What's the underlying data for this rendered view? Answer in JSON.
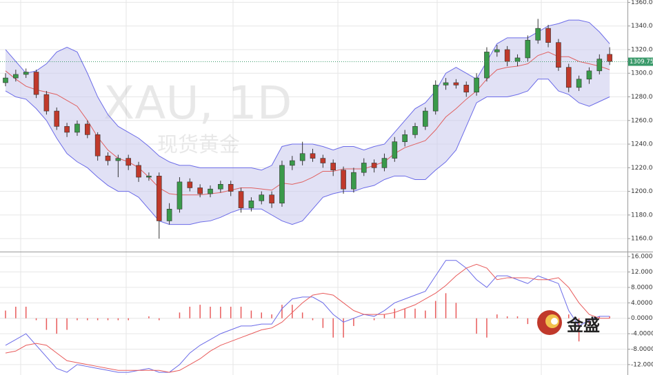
{
  "chart_data": [
    {
      "type": "candlestick",
      "watermark": [
        "XAU, 1D",
        "现货黄金"
      ],
      "open": [
        1292,
        1296,
        1299,
        1301,
        1282,
        1268,
        1255,
        1250,
        1257,
        1248,
        1230,
        1226,
        1228,
        1222,
        1212,
        1213,
        1175,
        1185,
        1208,
        1203,
        1198,
        1202,
        1206,
        1200,
        1186,
        1192,
        1197,
        1190,
        1222,
        1226,
        1232,
        1228,
        1224,
        1218,
        1202,
        1216,
        1224,
        1220,
        1228,
        1242,
        1248,
        1255,
        1268,
        1290,
        1292,
        1290,
        1284,
        1296,
        1318,
        1320,
        1310,
        1313,
        1328,
        1338,
        1326,
        1305,
        1288,
        1295,
        1302,
        1316
      ],
      "high": [
        1300,
        1303,
        1304,
        1303,
        1285,
        1271,
        1258,
        1260,
        1260,
        1250,
        1233,
        1231,
        1231,
        1225,
        1216,
        1216,
        1190,
        1212,
        1211,
        1206,
        1205,
        1209,
        1209,
        1203,
        1195,
        1200,
        1200,
        1226,
        1230,
        1242,
        1236,
        1231,
        1227,
        1221,
        1220,
        1228,
        1227,
        1232,
        1246,
        1252,
        1258,
        1271,
        1294,
        1296,
        1295,
        1293,
        1300,
        1322,
        1324,
        1323,
        1316,
        1332,
        1346,
        1341,
        1329,
        1308,
        1298,
        1305,
        1316,
        1322
      ],
      "low": [
        1289,
        1293,
        1296,
        1279,
        1265,
        1252,
        1246,
        1247,
        1245,
        1226,
        1222,
        1212,
        1218,
        1208,
        1209,
        1160,
        1172,
        1182,
        1200,
        1195,
        1195,
        1199,
        1196,
        1182,
        1183,
        1189,
        1186,
        1187,
        1218,
        1222,
        1225,
        1220,
        1213,
        1198,
        1199,
        1213,
        1216,
        1217,
        1225,
        1238,
        1245,
        1252,
        1265,
        1286,
        1287,
        1280,
        1281,
        1293,
        1314,
        1306,
        1306,
        1310,
        1325,
        1322,
        1302,
        1284,
        1285,
        1291,
        1299,
        1307
      ],
      "close": [
        1296,
        1299,
        1301,
        1282,
        1268,
        1255,
        1250,
        1257,
        1248,
        1230,
        1226,
        1228,
        1222,
        1212,
        1213,
        1175,
        1185,
        1208,
        1203,
        1198,
        1202,
        1206,
        1200,
        1186,
        1192,
        1197,
        1190,
        1222,
        1226,
        1232,
        1228,
        1224,
        1218,
        1202,
        1216,
        1224,
        1220,
        1228,
        1242,
        1248,
        1255,
        1268,
        1290,
        1292,
        1290,
        1284,
        1296,
        1318,
        1320,
        1310,
        1313,
        1328,
        1338,
        1326,
        1305,
        1288,
        1295,
        1302,
        1312,
        1310
      ],
      "up_color": "#3a9a4a",
      "down_color": "#c0392b",
      "bands": {
        "color": "#6a6ae8",
        "fill": "#c8c8ec",
        "upper": [
          1320,
          1310,
          1300,
          1302,
          1308,
          1318,
          1322,
          1318,
          1300,
          1280,
          1265,
          1255,
          1250,
          1245,
          1238,
          1230,
          1225,
          1222,
          1222,
          1220,
          1220,
          1220,
          1220,
          1220,
          1220,
          1218,
          1222,
          1238,
          1240,
          1240,
          1240,
          1238,
          1235,
          1238,
          1238,
          1235,
          1238,
          1240,
          1250,
          1260,
          1270,
          1275,
          1285,
          1300,
          1305,
          1300,
          1295,
          1310,
          1325,
          1330,
          1330,
          1330,
          1335,
          1340,
          1342,
          1345,
          1345,
          1343,
          1335,
          1325
        ],
        "lower": [
          1285,
          1280,
          1278,
          1270,
          1260,
          1245,
          1232,
          1225,
          1220,
          1212,
          1205,
          1200,
          1200,
          1195,
          1185,
          1175,
          1172,
          1172,
          1172,
          1174,
          1175,
          1178,
          1182,
          1185,
          1185,
          1185,
          1180,
          1175,
          1172,
          1175,
          1185,
          1195,
          1198,
          1200,
          1200,
          1203,
          1205,
          1210,
          1213,
          1213,
          1210,
          1210,
          1218,
          1225,
          1235,
          1255,
          1275,
          1280,
          1280,
          1280,
          1282,
          1285,
          1295,
          1295,
          1285,
          1282,
          1275,
          1272,
          1276,
          1280
        ],
        "middle": [
          1302,
          1295,
          1289,
          1286,
          1284,
          1282,
          1277,
          1272,
          1260,
          1246,
          1235,
          1228,
          1225,
          1220,
          1212,
          1203,
          1198,
          1197,
          1197,
          1197,
          1198,
          1199,
          1201,
          1203,
          1203,
          1202,
          1201,
          1207,
          1206,
          1208,
          1212,
          1217,
          1217,
          1219,
          1219,
          1219,
          1222,
          1225,
          1232,
          1237,
          1240,
          1243,
          1252,
          1263,
          1270,
          1278,
          1285,
          1295,
          1303,
          1305,
          1306,
          1308,
          1315,
          1318,
          1314,
          1314,
          1310,
          1308,
          1306,
          1303
        ],
        "middle_color": "#e06060"
      },
      "last_price": 1309.75,
      "last_price_color": "#3a9a6a",
      "ylim": [
        1149,
        1362
      ],
      "yticks": [
        {
          "value": 1160,
          "label": "1160.0"
        },
        {
          "value": 1180,
          "label": "1180.0"
        },
        {
          "value": 1200,
          "label": "1200.0"
        },
        {
          "value": 1220,
          "label": "1220.0"
        },
        {
          "value": 1240,
          "label": "1240.0"
        },
        {
          "value": 1260,
          "label": "1260.0"
        },
        {
          "value": 1280,
          "label": "1280.0"
        },
        {
          "value": 1300,
          "label": "1300.0"
        },
        {
          "value": 1320,
          "label": "1320.0"
        },
        {
          "value": 1340,
          "label": "1340.0"
        },
        {
          "value": 1360,
          "label": "1360.0"
        }
      ],
      "grid": true
    },
    {
      "type": "macd",
      "series": [
        {
          "name": "DIF",
          "color": "#6a6ae8",
          "values": [
            -7,
            -5.5,
            -4,
            -7,
            -10,
            -13,
            -14,
            -12,
            -12.5,
            -13,
            -13.5,
            -14,
            -14,
            -13.5,
            -13,
            -14,
            -14,
            -12,
            -9,
            -7,
            -5.5,
            -4,
            -3,
            -2,
            -2,
            -1.5,
            -1.5,
            2.5,
            5,
            5.5,
            5.5,
            4,
            1,
            -1,
            0,
            1,
            0.5,
            2,
            4,
            5,
            6,
            7,
            11,
            15,
            15,
            13,
            10,
            8,
            11,
            11,
            10,
            9,
            11,
            10,
            9,
            2,
            -2,
            -0.5,
            0.5,
            0.5
          ]
        },
        {
          "name": "DEA",
          "color": "#e85a5a",
          "values": [
            -9,
            -8.5,
            -7,
            -6.5,
            -7,
            -9,
            -11,
            -11.5,
            -12,
            -12.5,
            -13,
            -13.5,
            -13.5,
            -13.5,
            -13.5,
            -13.5,
            -14,
            -13.5,
            -12,
            -10.5,
            -8.5,
            -7,
            -6,
            -5,
            -4,
            -3,
            -2.5,
            -1,
            1.5,
            4,
            6,
            6.5,
            6,
            4,
            2,
            1,
            1,
            1,
            1.5,
            2.5,
            3.5,
            5,
            6.5,
            8.5,
            11,
            13,
            14,
            13,
            10,
            10.5,
            10.5,
            10.5,
            10,
            10,
            10.5,
            8,
            4,
            1,
            0,
            0
          ]
        }
      ],
      "histogram": {
        "color": "#e85a5a",
        "values": [
          2,
          3,
          3,
          -0.5,
          -3,
          -4,
          -3,
          -0.5,
          -0.5,
          -0.5,
          -0.5,
          -0.5,
          -0.5,
          0,
          0.5,
          -0.5,
          0,
          1.5,
          3,
          3.5,
          3,
          3,
          3,
          3,
          2,
          1.5,
          1,
          3.5,
          3.5,
          1.5,
          -0.5,
          -2.5,
          -5,
          -5,
          -2,
          0,
          -0.5,
          1,
          2.5,
          2.5,
          2.5,
          2,
          4.5,
          6.5,
          4,
          0,
          -4,
          -5,
          1,
          0.5,
          0.5,
          -1.5,
          -1,
          1,
          -1.5,
          1,
          -6,
          -1.5,
          0.5,
          0.5
        ]
      },
      "ylim": [
        -14.7,
        17.1
      ],
      "yticks": [
        {
          "value": -12,
          "label": "-12.000"
        },
        {
          "value": -8,
          "label": "-8.0000"
        },
        {
          "value": -4,
          "label": "-4.0000"
        },
        {
          "value": 0,
          "label": "0.0000"
        },
        {
          "value": 4,
          "label": "4.0000"
        },
        {
          "value": 8,
          "label": "8.0000"
        },
        {
          "value": 12,
          "label": "12.000"
        },
        {
          "value": 16,
          "label": "16.000"
        }
      ],
      "grid": true
    }
  ],
  "logo": "金盛"
}
